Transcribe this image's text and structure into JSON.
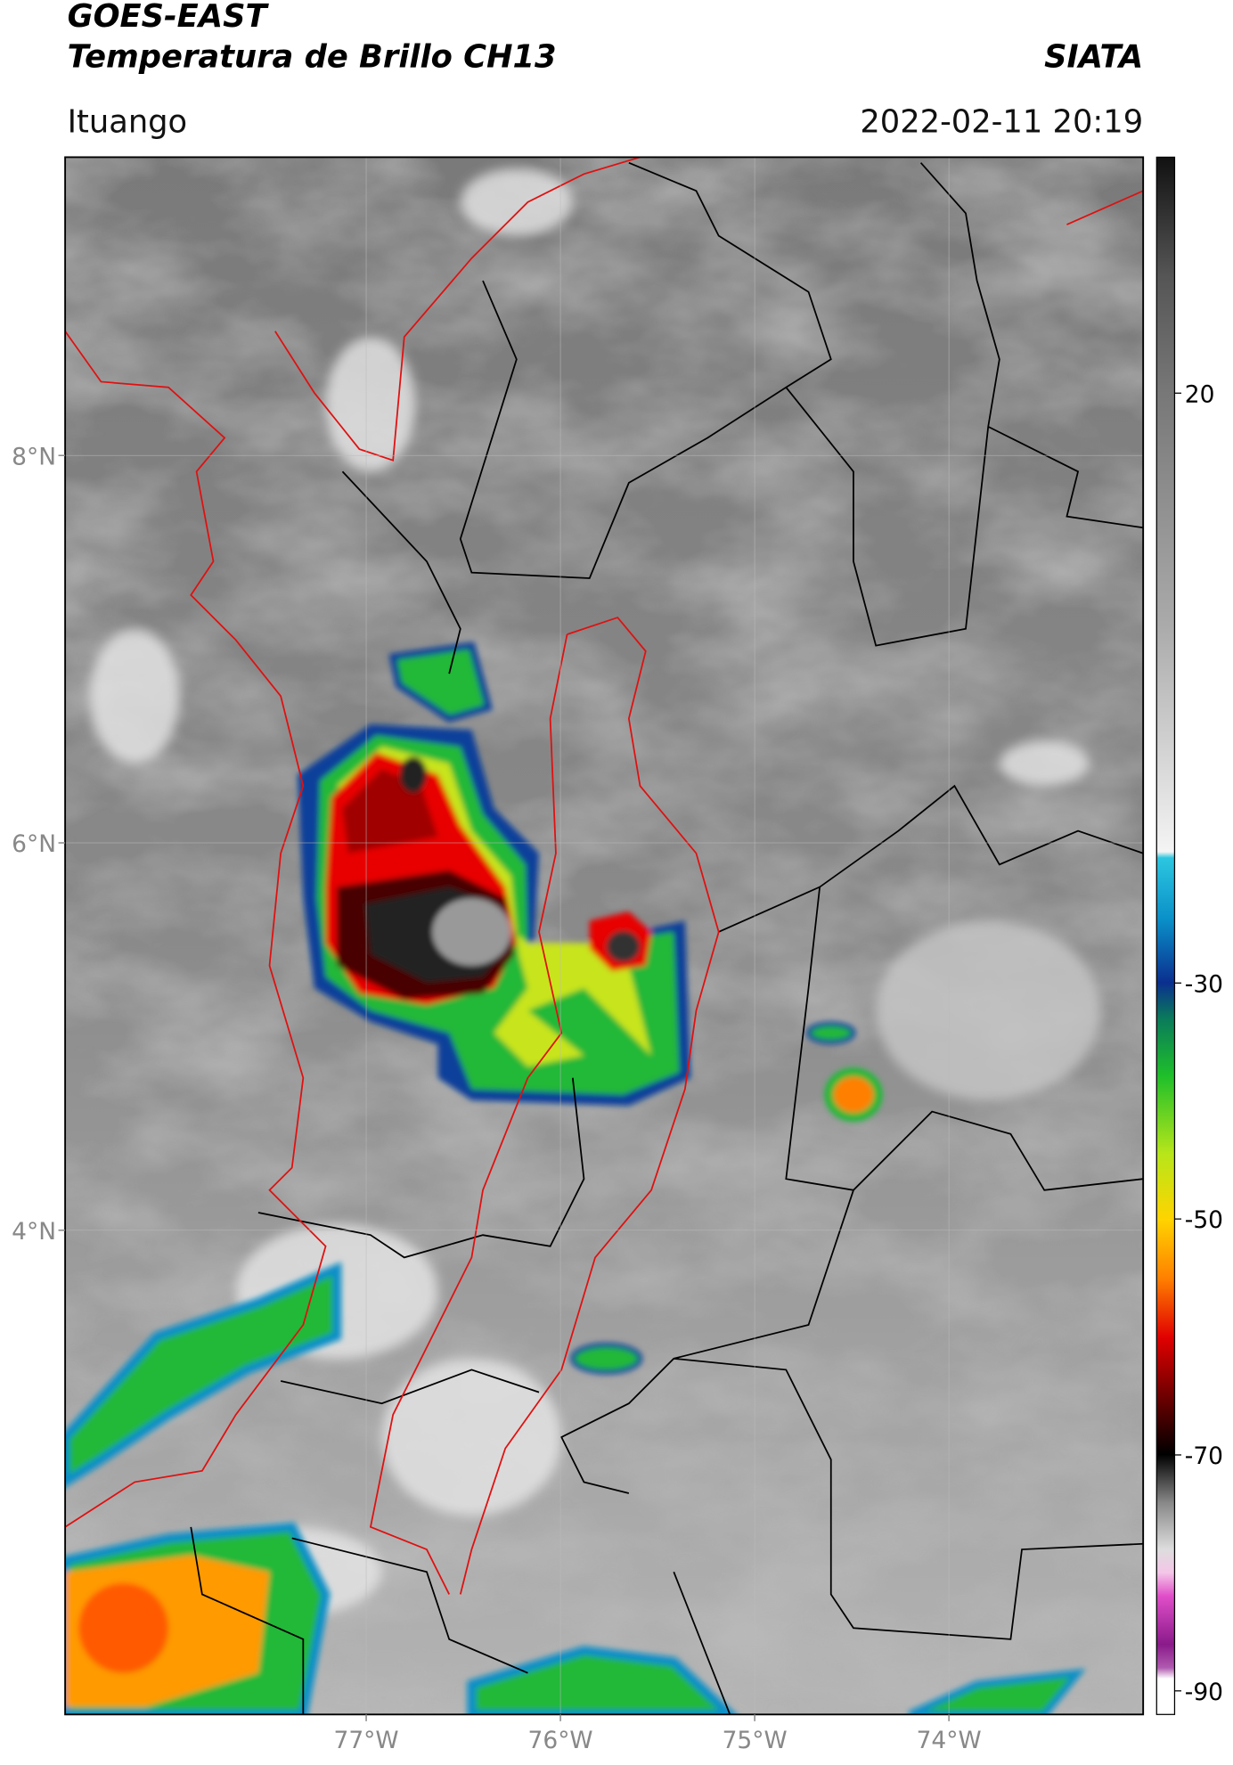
{
  "header": {
    "title": "GOES-EAST",
    "subtitle": "Temperatura de Brillo CH13",
    "agency": "SIATA",
    "location": "Ituango",
    "datetime": "2022-02-11 20:19"
  },
  "map": {
    "xlim": [
      -78.55,
      -73.0
    ],
    "ylim": [
      1.5,
      9.54
    ],
    "xticks": [
      {
        "value": -77,
        "label": "77°W"
      },
      {
        "value": -76,
        "label": "76°W"
      },
      {
        "value": -75,
        "label": "75°W"
      },
      {
        "value": -74,
        "label": "74°W"
      }
    ],
    "yticks": [
      {
        "value": 4,
        "label": "4°N"
      },
      {
        "value": 6,
        "label": "6°N"
      },
      {
        "value": 8,
        "label": "8°N"
      }
    ],
    "grid": true
  },
  "colorbar": {
    "lim": [
      -92,
      40
    ],
    "ticks": [
      20,
      -30,
      -50,
      -70,
      -90
    ]
  }
}
